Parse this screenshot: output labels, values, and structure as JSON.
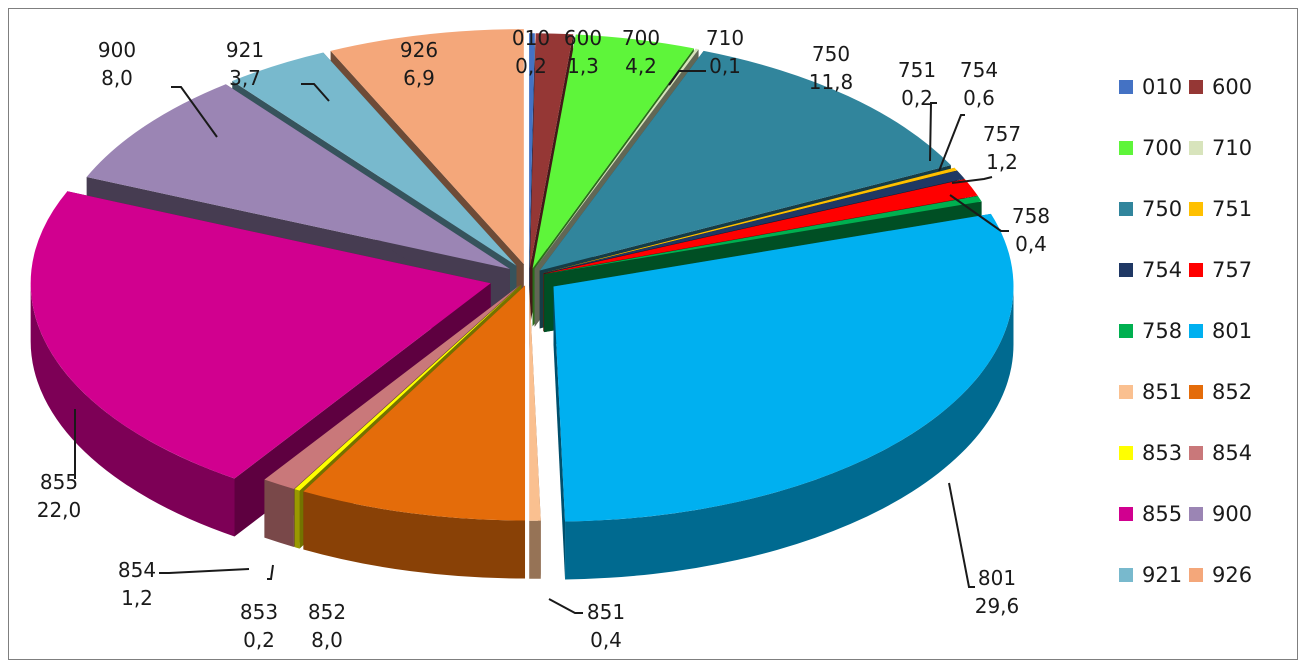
{
  "chart_data": {
    "type": "pie",
    "style": "3d-exploded",
    "slices": [
      {
        "name": "010",
        "value": 0.2,
        "label": "0,2",
        "color": "#4472c4"
      },
      {
        "name": "600",
        "value": 1.3,
        "label": "1,3",
        "color": "#953735"
      },
      {
        "name": "700",
        "value": 4.2,
        "label": "4,2",
        "color": "#5ef53a"
      },
      {
        "name": "710",
        "value": 0.1,
        "label": "0,1",
        "color": "#d8e4bc"
      },
      {
        "name": "750",
        "value": 11.8,
        "label": "11,8",
        "color": "#31859c"
      },
      {
        "name": "751",
        "value": 0.2,
        "label": "0,2",
        "color": "#ffc000"
      },
      {
        "name": "754",
        "value": 0.6,
        "label": "0,6",
        "color": "#1f3864"
      },
      {
        "name": "757",
        "value": 1.2,
        "label": "1,2",
        "color": "#ff0000"
      },
      {
        "name": "758",
        "value": 0.4,
        "label": "0,4",
        "color": "#00b050"
      },
      {
        "name": "801",
        "value": 29.6,
        "label": "29,6",
        "color": "#00b0f0"
      },
      {
        "name": "851",
        "value": 0.4,
        "label": "0,4",
        "color": "#fac090"
      },
      {
        "name": "852",
        "value": 8.0,
        "label": "8,0",
        "color": "#e46c0a"
      },
      {
        "name": "853",
        "value": 0.2,
        "label": "0,2",
        "color": "#ffff00"
      },
      {
        "name": "854",
        "value": 1.2,
        "label": "1,2",
        "color": "#c9787a"
      },
      {
        "name": "855",
        "value": 22.0,
        "label": "22,0",
        "color": "#d1008f"
      },
      {
        "name": "900",
        "value": 8.0,
        "label": "8,0",
        "color": "#9b85b4"
      },
      {
        "name": "921",
        "value": 3.7,
        "label": "3,7",
        "color": "#78b9cd"
      },
      {
        "name": "926",
        "value": 6.9,
        "label": "6,9",
        "color": "#f4a77a"
      }
    ],
    "legend_position": "right"
  }
}
